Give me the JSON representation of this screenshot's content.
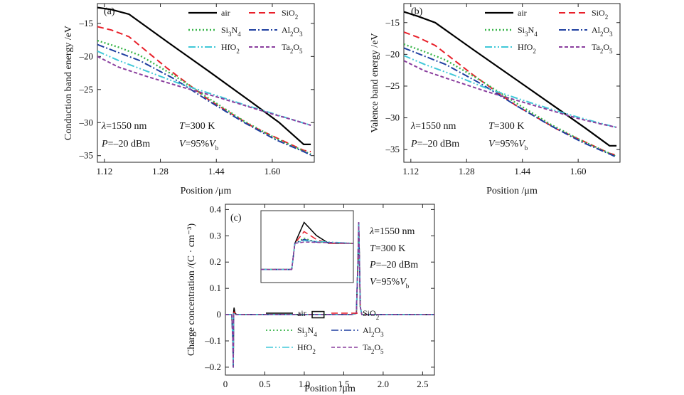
{
  "chart_data": [
    {
      "id": "a",
      "type": "line",
      "panel_label": "(a)",
      "xlabel": "Position /μm",
      "ylabel": "Conduction band energy /eV",
      "xlim": [
        1.1,
        1.72
      ],
      "ylim": [
        -36,
        -12
      ],
      "xticks": [
        1.12,
        1.28,
        1.44,
        1.6
      ],
      "xtick_labels": [
        "1.12",
        "1.28",
        "1.44",
        "1.60"
      ],
      "yticks": [
        -15,
        -20,
        -25,
        -30,
        -35
      ],
      "ytick_labels": [
        "–15",
        "–20",
        "–25",
        "–30",
        "–35"
      ],
      "annotations": [
        {
          "parts": [
            "λ",
            "=1550 nm"
          ],
          "italic": [
            true,
            false
          ]
        },
        {
          "parts": [
            "T",
            "=300 K"
          ],
          "italic": [
            true,
            false
          ]
        },
        {
          "parts": [
            "P",
            "=–20 dBm"
          ],
          "italic": [
            true,
            false
          ]
        },
        {
          "parts": [
            "V",
            "=95%",
            "V",
            "b"
          ],
          "italic": [
            true,
            false,
            true,
            false
          ],
          "sub": [
            false,
            false,
            false,
            true
          ]
        }
      ],
      "series": [
        {
          "name": "air",
          "label": [
            "air",
            ""
          ],
          "color": "#000000",
          "dash": "",
          "width": 2.2,
          "x": [
            1.1,
            1.14,
            1.19,
            1.3,
            1.42,
            1.54,
            1.62,
            1.69,
            1.71
          ],
          "y": [
            -12.6,
            -12.9,
            -13.6,
            -17.8,
            -22.3,
            -26.9,
            -30.0,
            -33.3,
            -33.3
          ]
        },
        {
          "name": "SiO2",
          "label": [
            "SiO",
            "2"
          ],
          "color": "#e8202a",
          "dash": "9,5",
          "width": 2.0,
          "x": [
            1.1,
            1.14,
            1.19,
            1.3,
            1.42,
            1.54,
            1.62,
            1.69,
            1.71
          ],
          "y": [
            -15.5,
            -16.0,
            -17.0,
            -21.8,
            -26.6,
            -30.5,
            -32.5,
            -34.2,
            -34.4
          ]
        },
        {
          "name": "Si3N4",
          "label": [
            "Si",
            "3",
            "N",
            "4"
          ],
          "color": "#39b54a",
          "dash": "2,3",
          "width": 2.4,
          "x": [
            1.1,
            1.16,
            1.22,
            1.32,
            1.42,
            1.52,
            1.61,
            1.69,
            1.71
          ],
          "y": [
            -17.6,
            -18.6,
            -19.8,
            -22.9,
            -26.4,
            -29.8,
            -32.4,
            -34.3,
            -34.8
          ]
        },
        {
          "name": "Al2O3",
          "label": [
            "Al",
            "2",
            "O",
            "3"
          ],
          "color": "#1f3fa0",
          "dash": "10,3,2,3",
          "width": 2.0,
          "x": [
            1.1,
            1.16,
            1.22,
            1.32,
            1.42,
            1.52,
            1.61,
            1.69,
            1.71
          ],
          "y": [
            -18.2,
            -19.4,
            -20.6,
            -23.4,
            -26.8,
            -30.0,
            -32.6,
            -34.4,
            -34.9
          ]
        },
        {
          "name": "HfO2",
          "label": [
            "HfO",
            "2"
          ],
          "color": "#40c8d8",
          "dash": "10,3,2,3,2,3",
          "width": 2.0,
          "x": [
            1.1,
            1.16,
            1.24,
            1.34,
            1.44,
            1.52,
            1.6,
            1.66,
            1.71
          ],
          "y": [
            -19.2,
            -20.6,
            -22.2,
            -24.2,
            -25.9,
            -27.3,
            -28.6,
            -29.6,
            -30.4
          ]
        },
        {
          "name": "Ta2O5",
          "label": [
            "Ta",
            "2",
            "O",
            "5"
          ],
          "color": "#8a3e9e",
          "dash": "5,3",
          "width": 2.0,
          "x": [
            1.1,
            1.16,
            1.24,
            1.34,
            1.44,
            1.52,
            1.6,
            1.66,
            1.71
          ],
          "y": [
            -20.0,
            -21.6,
            -23.0,
            -24.6,
            -26.1,
            -27.4,
            -28.7,
            -29.6,
            -30.4
          ]
        }
      ]
    },
    {
      "id": "b",
      "type": "line",
      "panel_label": "(b)",
      "xlabel": "Position /μm",
      "ylabel": "Valence band energy /eV",
      "xlim": [
        1.1,
        1.72
      ],
      "ylim": [
        -37,
        -12
      ],
      "xticks": [
        1.12,
        1.28,
        1.44,
        1.6
      ],
      "xtick_labels": [
        "1.12",
        "1.28",
        "1.44",
        "1.60"
      ],
      "yticks": [
        -15,
        -20,
        -25,
        -30,
        -35
      ],
      "ytick_labels": [
        "–15",
        "–20",
        "–25",
        "–30",
        "–35"
      ],
      "annotations": [
        {
          "parts": [
            "λ",
            "=1550 nm"
          ],
          "italic": [
            true,
            false
          ]
        },
        {
          "parts": [
            "T",
            "=300 K"
          ],
          "italic": [
            true,
            false
          ]
        },
        {
          "parts": [
            "P",
            "=–20 dBm"
          ],
          "italic": [
            true,
            false
          ]
        },
        {
          "parts": [
            "V",
            "=95%",
            "V",
            "b"
          ],
          "italic": [
            true,
            false,
            true,
            false
          ],
          "sub": [
            false,
            false,
            false,
            true
          ]
        }
      ],
      "series": [
        {
          "name": "air",
          "label": [
            "air",
            ""
          ],
          "color": "#000000",
          "dash": "",
          "width": 2.2,
          "x": [
            1.1,
            1.14,
            1.19,
            1.3,
            1.42,
            1.54,
            1.62,
            1.69,
            1.71
          ],
          "y": [
            -13.3,
            -14.0,
            -15.0,
            -19.3,
            -23.9,
            -28.5,
            -31.6,
            -34.4,
            -34.4
          ]
        },
        {
          "name": "SiO2",
          "label": [
            "SiO",
            "2"
          ],
          "color": "#e8202a",
          "dash": "9,5",
          "width": 2.0,
          "x": [
            1.1,
            1.14,
            1.19,
            1.3,
            1.42,
            1.54,
            1.62,
            1.69,
            1.71
          ],
          "y": [
            -16.5,
            -17.3,
            -18.6,
            -23.3,
            -28.0,
            -31.8,
            -33.8,
            -35.6,
            -35.9
          ]
        },
        {
          "name": "Si3N4",
          "label": [
            "Si",
            "3",
            "N",
            "4"
          ],
          "color": "#39b54a",
          "dash": "2,3",
          "width": 2.4,
          "x": [
            1.1,
            1.16,
            1.22,
            1.32,
            1.42,
            1.52,
            1.61,
            1.69,
            1.71
          ],
          "y": [
            -18.4,
            -19.6,
            -20.9,
            -24.1,
            -27.6,
            -31.0,
            -33.6,
            -35.6,
            -36.1
          ]
        },
        {
          "name": "Al2O3",
          "label": [
            "Al",
            "2",
            "O",
            "3"
          ],
          "color": "#1f3fa0",
          "dash": "10,3,2,3",
          "width": 2.0,
          "x": [
            1.1,
            1.16,
            1.22,
            1.32,
            1.42,
            1.52,
            1.61,
            1.69,
            1.71
          ],
          "y": [
            -19.0,
            -20.3,
            -21.6,
            -24.6,
            -28.0,
            -31.2,
            -33.8,
            -35.7,
            -36.2
          ]
        },
        {
          "name": "HfO2",
          "label": [
            "HfO",
            "2"
          ],
          "color": "#40c8d8",
          "dash": "10,3,2,3,2,3",
          "width": 2.0,
          "x": [
            1.1,
            1.16,
            1.24,
            1.34,
            1.44,
            1.52,
            1.6,
            1.66,
            1.71
          ],
          "y": [
            -20.2,
            -21.6,
            -23.2,
            -25.4,
            -27.2,
            -28.6,
            -29.9,
            -30.8,
            -31.5
          ]
        },
        {
          "name": "Ta2O5",
          "label": [
            "Ta",
            "2",
            "O",
            "5"
          ],
          "color": "#8a3e9e",
          "dash": "5,3",
          "width": 2.0,
          "x": [
            1.1,
            1.16,
            1.24,
            1.34,
            1.44,
            1.52,
            1.6,
            1.66,
            1.71
          ],
          "y": [
            -21.0,
            -22.6,
            -24.1,
            -25.9,
            -27.5,
            -28.8,
            -30.1,
            -30.9,
            -31.5
          ]
        }
      ]
    },
    {
      "id": "c",
      "type": "line",
      "panel_label": "(c)",
      "xlabel": "Position /μm",
      "ylabel": "Charge concentration /(C · cm⁻³)",
      "xlim": [
        0,
        2.65
      ],
      "ylim": [
        -0.23,
        0.42
      ],
      "xticks": [
        0,
        0.5,
        1.0,
        1.5,
        2.0,
        2.5
      ],
      "xtick_labels": [
        "0",
        "0.5",
        "1.0",
        "1.5",
        "2.0",
        "2.5"
      ],
      "yticks": [
        0.4,
        0.3,
        0.2,
        0.1,
        0,
        -0.1,
        -0.2
      ],
      "ytick_labels": [
        "0.4",
        "0.3",
        "0.2",
        "0.1",
        "0",
        "–0.1",
        "–0.2"
      ],
      "annotations": [
        {
          "parts": [
            "λ",
            "=1550 nm"
          ],
          "italic": [
            true,
            false
          ]
        },
        {
          "parts": [
            "T",
            "=300 K"
          ],
          "italic": [
            true,
            false
          ]
        },
        {
          "parts": [
            "P",
            "=–20 dBm"
          ],
          "italic": [
            true,
            false
          ]
        },
        {
          "parts": [
            "V",
            "=95%",
            "V",
            "b"
          ],
          "italic": [
            true,
            false,
            true,
            false
          ],
          "sub": [
            false,
            false,
            false,
            true
          ]
        }
      ],
      "series": [
        {
          "name": "air",
          "label": [
            "air",
            ""
          ],
          "color": "#000000",
          "dash": "",
          "width": 1.6,
          "x": [
            0,
            0.08,
            0.095,
            0.1,
            0.105,
            0.11,
            0.12,
            0.14,
            0.3,
            1.0,
            1.6,
            1.66,
            1.68,
            1.69,
            1.7,
            1.71,
            1.73,
            1.8,
            2.65
          ],
          "y": [
            0,
            0,
            -0.1,
            -0.2,
            0.01,
            0.025,
            0.008,
            0,
            0,
            0,
            0,
            0.005,
            0.2,
            0.35,
            0.2,
            0.03,
            0,
            0,
            0
          ]
        },
        {
          "name": "SiO2",
          "label": [
            "SiO",
            "2"
          ],
          "color": "#e8202a",
          "dash": "9,5",
          "width": 1.6,
          "x": [
            0,
            0.08,
            0.095,
            0.1,
            0.105,
            0.11,
            0.14,
            1.6,
            1.66,
            1.68,
            1.69,
            1.7,
            1.71,
            1.73,
            2.65
          ],
          "y": [
            0,
            0,
            -0.1,
            -0.2,
            0.005,
            0.01,
            0,
            0,
            0.005,
            0.2,
            0.35,
            0.2,
            0.03,
            0,
            0
          ]
        },
        {
          "name": "Si3N4",
          "label": [
            "Si",
            "3",
            "N",
            "4"
          ],
          "color": "#39b54a",
          "dash": "2,3",
          "width": 1.8,
          "x": [
            0,
            0.08,
            0.095,
            0.1,
            0.105,
            0.14,
            1.6,
            1.66,
            1.68,
            1.69,
            1.7,
            1.71,
            1.73,
            2.65
          ],
          "y": [
            0,
            0,
            -0.1,
            -0.2,
            0.004,
            0,
            0,
            0.005,
            0.2,
            0.35,
            0.2,
            0.03,
            0,
            0
          ]
        },
        {
          "name": "Al2O3",
          "label": [
            "Al",
            "2",
            "O",
            "3"
          ],
          "color": "#1f3fa0",
          "dash": "10,3,2,3",
          "width": 1.6,
          "x": [
            0,
            0.08,
            0.095,
            0.1,
            0.105,
            0.14,
            1.6,
            1.66,
            1.68,
            1.69,
            1.7,
            1.71,
            1.73,
            2.65
          ],
          "y": [
            0,
            0,
            -0.1,
            -0.2,
            0.004,
            0,
            0,
            0.005,
            0.2,
            0.35,
            0.2,
            0.03,
            0,
            0
          ]
        },
        {
          "name": "HfO2",
          "label": [
            "HfO",
            "2"
          ],
          "color": "#40c8d8",
          "dash": "10,3,2,3,2,3",
          "width": 1.6,
          "x": [
            0,
            0.08,
            0.095,
            0.1,
            0.105,
            0.14,
            1.6,
            1.66,
            1.68,
            1.69,
            1.7,
            1.71,
            1.73,
            2.65
          ],
          "y": [
            0,
            0,
            -0.1,
            -0.2,
            0.003,
            0,
            0,
            0.005,
            0.2,
            0.35,
            0.2,
            0.03,
            0,
            0
          ]
        },
        {
          "name": "Ta2O5",
          "label": [
            "Ta",
            "2",
            "O",
            "5"
          ],
          "color": "#8a3e9e",
          "dash": "5,3",
          "width": 1.6,
          "x": [
            0,
            0.08,
            0.095,
            0.1,
            0.105,
            0.14,
            1.6,
            1.66,
            1.68,
            1.69,
            1.7,
            1.71,
            1.73,
            2.65
          ],
          "y": [
            0,
            0,
            -0.1,
            -0.2,
            0.003,
            0,
            0,
            0.005,
            0.2,
            0.35,
            0.2,
            0.03,
            0,
            0
          ]
        }
      ],
      "zoom_marker": {
        "x": [
          1.1,
          1.25
        ],
        "y": [
          -0.012,
          0.012
        ]
      },
      "inset": {
        "xlim": [
          1.1,
          1.25
        ],
        "ylim": [
          -0.01,
          0.045
        ],
        "series": [
          {
            "name": "air",
            "x": [
              1.1,
              1.15,
              1.155,
              1.17,
              1.19,
              1.21,
              1.25
            ],
            "y": [
              0,
              0,
              0.02,
              0.036,
              0.026,
              0.02,
              0.02
            ]
          },
          {
            "name": "SiO2",
            "x": [
              1.1,
              1.15,
              1.155,
              1.17,
              1.19,
              1.21,
              1.25
            ],
            "y": [
              0,
              0,
              0.02,
              0.029,
              0.023,
              0.02,
              0.02
            ]
          },
          {
            "name": "Si3N4",
            "x": [
              1.1,
              1.15,
              1.155,
              1.17,
              1.19,
              1.25
            ],
            "y": [
              0,
              0,
              0.02,
              0.024,
              0.021,
              0.02
            ]
          },
          {
            "name": "Al2O3",
            "x": [
              1.1,
              1.15,
              1.155,
              1.17,
              1.19,
              1.25
            ],
            "y": [
              0,
              0,
              0.02,
              0.023,
              0.021,
              0.02
            ]
          },
          {
            "name": "HfO2",
            "x": [
              1.1,
              1.15,
              1.155,
              1.17,
              1.25
            ],
            "y": [
              0,
              0,
              0.02,
              0.022,
              0.02
            ]
          },
          {
            "name": "Ta2O5",
            "x": [
              1.1,
              1.15,
              1.155,
              1.17,
              1.25
            ],
            "y": [
              0,
              0,
              0.02,
              0.021,
              0.02
            ]
          }
        ]
      }
    }
  ]
}
